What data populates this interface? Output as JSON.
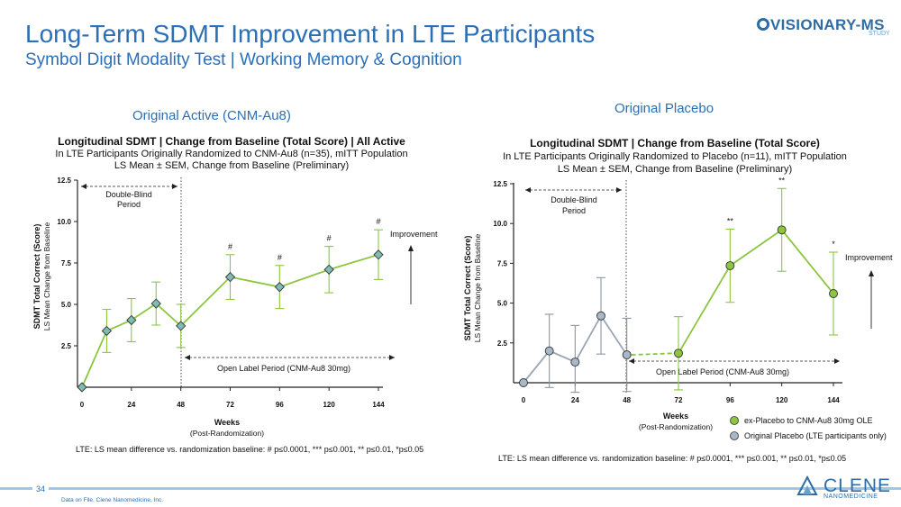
{
  "header": {
    "title": "Long-Term SDMT Improvement in LTE Participants",
    "subtitle": "Symbol Digit Modality Test | Working Memory & Cognition",
    "logo": "VISIONARY-MS",
    "logo_sub": "STUDY"
  },
  "sections": {
    "left": "Original Active (CNM-Au8)",
    "right": "Original Placebo"
  },
  "footer": {
    "page_number": "34",
    "note": "Data on File, Clene Nanomedicine, Inc.",
    "company": "CLENE",
    "company_sub": "NANOMEDICINE"
  },
  "colors": {
    "green": "#8cc63f",
    "gray_marker": "#a8b8c8",
    "teal_marker": "#7fbcb2",
    "accent": "#2b6fb6"
  },
  "chart_data": [
    {
      "type": "line",
      "title": "Longitudinal SDMT | Change from Baseline (Total Score) | All Active",
      "subtitle1": "In LTE Participants Originally Randomized to CNM-Au8 (n=35), mITT Population",
      "subtitle2": "LS Mean ± SEM, Change from Baseline (Preliminary)",
      "ylabel1": "SDMT Total Correct (Score)",
      "ylabel2": "LS Mean Change from Baseline",
      "xlabel1": "Weeks",
      "xlabel2": "(Post-Randomization)",
      "ylim": [
        0,
        12.5
      ],
      "xlim": [
        0,
        144
      ],
      "yticks": [
        "2.5",
        "5.0",
        "7.5",
        "10.0",
        "12.5"
      ],
      "xticks": [
        "0",
        "24",
        "48",
        "72",
        "96",
        "120",
        "144"
      ],
      "series": [
        {
          "name": "All Active",
          "x": [
            0,
            12,
            24,
            36,
            48,
            72,
            96,
            120,
            144
          ],
          "y": [
            0,
            3.4,
            4.05,
            5.05,
            3.7,
            6.65,
            6.05,
            7.1,
            8.0
          ],
          "sem": [
            0,
            1.3,
            1.3,
            1.3,
            1.3,
            1.35,
            1.3,
            1.4,
            1.5
          ],
          "sig": [
            "",
            "",
            "",
            "",
            "",
            "#",
            "#",
            "#",
            "#"
          ]
        }
      ],
      "double_blind_label1": "Double-Blind",
      "double_blind_label2": "Period",
      "open_label": "Open Label Period (CNM-Au8 30mg)",
      "improvement_label": "Improvement",
      "footnote": "LTE: LS mean difference vs. randomization baseline: # p≤0.0001, *** p≤0.001, ** p≤0.01, *p≤0.05"
    },
    {
      "type": "line",
      "title": "Longitudinal SDMT | Change from Baseline (Total Score)",
      "subtitle1": "In LTE Participants Originally Randomized to Placebo (n=11), mITT Population",
      "subtitle2": "LS Mean ± SEM, Change from Baseline (Preliminary)",
      "ylabel1": "SDMT Total Correct (Score)",
      "ylabel2": "LS Mean Change from Baseline",
      "xlabel1": "Weeks",
      "xlabel2": "(Post-Randomization)",
      "ylim": [
        0,
        12.5
      ],
      "xlim": [
        0,
        144
      ],
      "yticks": [
        "2.5",
        "5.0",
        "7.5",
        "10.0",
        "12.5"
      ],
      "xticks": [
        "0",
        "24",
        "48",
        "72",
        "96",
        "120",
        "144"
      ],
      "series": [
        {
          "name": "Original Placebo (LTE participants only)",
          "x": [
            0,
            12,
            24,
            36,
            48
          ],
          "y": [
            0,
            2.0,
            1.3,
            4.2,
            1.75
          ],
          "sem": [
            0,
            2.3,
            2.3,
            2.4,
            2.3
          ],
          "sig": [
            "",
            "",
            "",
            "",
            ""
          ]
        },
        {
          "name": "ex-Placebo to CNM-Au8 30mg OLE",
          "x": [
            72,
            96,
            120,
            144
          ],
          "y": [
            1.85,
            7.35,
            9.6,
            5.6
          ],
          "sem": [
            2.3,
            2.3,
            2.6,
            2.6
          ],
          "sig": [
            "",
            "**",
            "**",
            "*"
          ]
        }
      ],
      "double_blind_label1": "Double-Blind",
      "double_blind_label2": "Period",
      "open_label": "Open Label Period (CNM-Au8 30mg)",
      "improvement_label": "Improvement",
      "footnote": "LTE: LS mean difference vs. randomization baseline: # p≤0.0001, *** p≤0.001, ** p≤0.01, *p≤0.05"
    }
  ]
}
